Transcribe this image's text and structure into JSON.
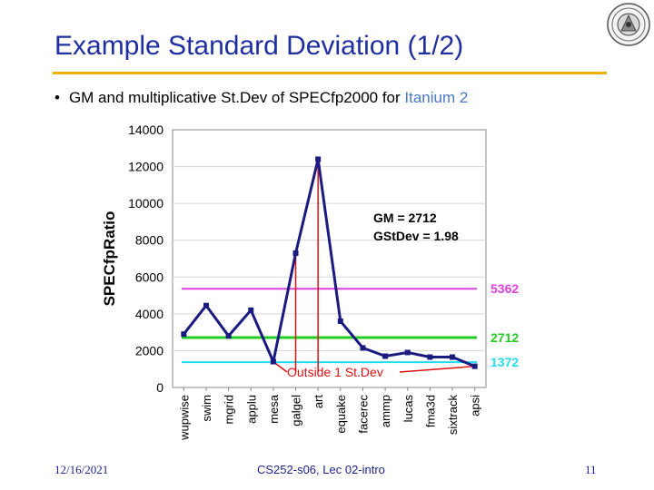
{
  "slide": {
    "title": "Example Standard Deviation (1/2)",
    "bullet_prefix": "GM and multiplicative St.Dev of SPECfp2000 for ",
    "bullet_highlight": "Itanium 2",
    "bullet_char": "•"
  },
  "footer": {
    "date": "12/16/2021",
    "course": "CS252-s06, Lec 02-intro",
    "page": "11"
  },
  "chart_data": {
    "type": "line",
    "title": "",
    "xlabel": "",
    "ylabel": "SPECfpRatio",
    "ylim": [
      0,
      14000
    ],
    "yticks": [
      0,
      2000,
      4000,
      6000,
      8000,
      10000,
      12000,
      14000
    ],
    "categories": [
      "wupwise",
      "swim",
      "mgrid",
      "applu",
      "mesa",
      "galgel",
      "art",
      "equake",
      "facerec",
      "ammp",
      "lucas",
      "fma3d",
      "sixtrack",
      "apsi"
    ],
    "series": [
      {
        "name": "SPECfpRatio",
        "values": [
          2900,
          4450,
          2800,
          4200,
          1400,
          7300,
          12400,
          3600,
          2150,
          1700,
          1900,
          1650,
          1650,
          1150
        ],
        "color": "#1a1a80"
      }
    ],
    "reference_lines": [
      {
        "value": 5362,
        "label": "5362",
        "color": "#e040e0"
      },
      {
        "value": 2712,
        "label": "2712",
        "color": "#22cc22"
      },
      {
        "value": 1372,
        "label": "1372",
        "color": "#22ddee"
      }
    ],
    "annotations": {
      "gm": "GM = 2712",
      "gstdev": "GStDev = 1.98",
      "outside": "Outside 1 St.Dev",
      "outside_color": "#dd1111",
      "outside_targets": [
        "mesa",
        "galgel",
        "art",
        "apsi"
      ]
    }
  }
}
